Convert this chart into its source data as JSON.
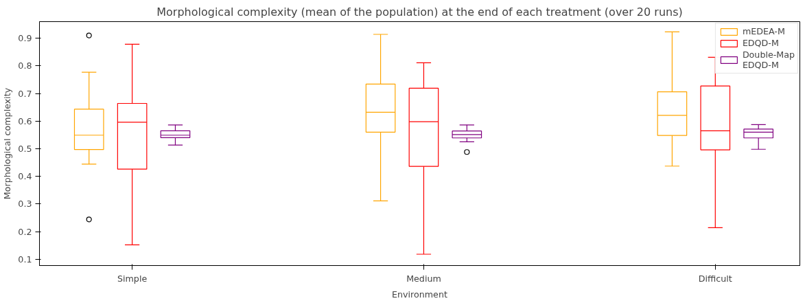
{
  "chart_data": {
    "type": "box",
    "title": "Morphological complexity (mean of the population) at the end of each treatment (over 20 runs)",
    "xlabel": "Environment",
    "ylabel": "Morphological complexity",
    "categories": [
      "Simple",
      "Medium",
      "Difficult"
    ],
    "ylim": [
      0.077,
      0.96
    ],
    "yticks": [
      0.1,
      0.2,
      0.3,
      0.4,
      0.5,
      0.6,
      0.7,
      0.8,
      0.9
    ],
    "grid": false,
    "legend": "top right",
    "series": [
      {
        "name": "mEDEA-M",
        "color": "#ffa500",
        "boxes": [
          {
            "low": 0.444,
            "q1": 0.497,
            "median": 0.549,
            "q3": 0.643,
            "high": 0.777,
            "outliers": [
              0.91,
              0.244
            ]
          },
          {
            "low": 0.311,
            "q1": 0.56,
            "median": 0.632,
            "q3": 0.734,
            "high": 0.914
          },
          {
            "low": 0.437,
            "q1": 0.548,
            "median": 0.621,
            "q3": 0.706,
            "high": 0.923
          }
        ]
      },
      {
        "name": "EDQD-M",
        "color": "#ff0000",
        "boxes": [
          {
            "low": 0.152,
            "q1": 0.426,
            "median": 0.596,
            "q3": 0.664,
            "high": 0.878
          },
          {
            "low": 0.118,
            "q1": 0.436,
            "median": 0.598,
            "q3": 0.719,
            "high": 0.811
          },
          {
            "low": 0.214,
            "q1": 0.496,
            "median": 0.565,
            "q3": 0.727,
            "high": 0.831
          }
        ]
      },
      {
        "name": "Double-Map\nEDQD-M",
        "color": "#800080",
        "boxes": [
          {
            "low": 0.513,
            "q1": 0.54,
            "median": 0.549,
            "q3": 0.565,
            "high": 0.586
          },
          {
            "low": 0.525,
            "q1": 0.539,
            "median": 0.551,
            "q3": 0.564,
            "high": 0.586,
            "outliers": [
              0.488
            ]
          },
          {
            "low": 0.498,
            "q1": 0.539,
            "median": 0.56,
            "q3": 0.571,
            "high": 0.587
          }
        ]
      }
    ]
  }
}
